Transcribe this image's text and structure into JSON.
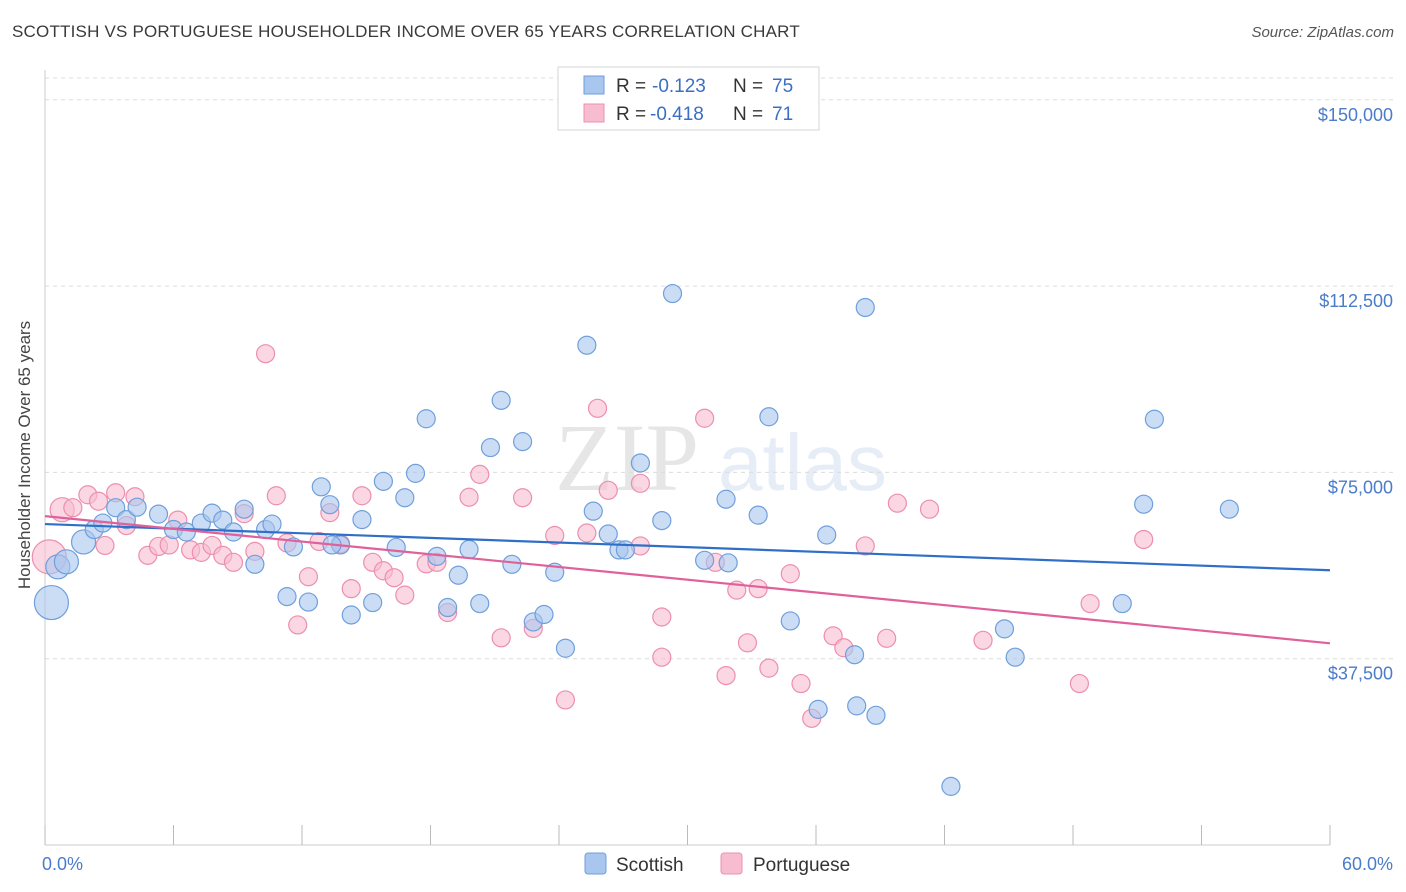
{
  "title": "SCOTTISH VS PORTUGUESE HOUSEHOLDER INCOME OVER 65 YEARS CORRELATION CHART",
  "source": "Source: ZipAtlas.com",
  "watermark": {
    "zip": "ZIP",
    "atlas": "atlas"
  },
  "colors": {
    "scottish_fill": "#a9c6ee",
    "scottish_stroke": "#6f9fdc",
    "scottish_line": "#2f6fc8",
    "portuguese_fill": "#f7bcd0",
    "portuguese_stroke": "#ec8fae",
    "portuguese_line": "#e0609a"
  },
  "stats_legend": [
    {
      "r_label": "R = ",
      "r_value": "-0.123",
      "n_label": "N = ",
      "n_value": "75"
    },
    {
      "r_label": "R = ",
      "r_value": "-0.418",
      "n_label": "N = ",
      "n_value": "71"
    }
  ],
  "chart_data": {
    "type": "scatter",
    "title": "SCOTTISH VS PORTUGUESE HOUSEHOLDER INCOME OVER 65 YEARS CORRELATION CHART",
    "xlabel": "",
    "ylabel": "Householder Income Over 65 years",
    "xlim": [
      0,
      60
    ],
    "ylim": [
      0,
      156000
    ],
    "x_tick_labels": {
      "min": "0.0%",
      "max": "60.0%"
    },
    "y_ticks": [
      {
        "value": 37500,
        "label": "$37,500"
      },
      {
        "value": 75000,
        "label": "$75,000"
      },
      {
        "value": 112500,
        "label": "$112,500"
      },
      {
        "value": 150000,
        "label": "$150,000"
      }
    ],
    "grid": true,
    "legend_position": "bottom-center",
    "series": [
      {
        "name": "Scottish",
        "trend": {
          "x": [
            0,
            60
          ],
          "y": [
            64600,
            55300
          ]
        },
        "points": [
          [
            0.3,
            48800
          ],
          [
            0.6,
            56000
          ],
          [
            1.0,
            57000
          ],
          [
            1.8,
            61000
          ],
          [
            2.3,
            63500
          ],
          [
            2.7,
            64800
          ],
          [
            3.3,
            67900
          ],
          [
            3.8,
            65500
          ],
          [
            4.3,
            68000
          ],
          [
            5.3,
            66600
          ],
          [
            6.0,
            63500
          ],
          [
            6.6,
            63000
          ],
          [
            7.3,
            64800
          ],
          [
            7.8,
            66800
          ],
          [
            8.3,
            65400
          ],
          [
            8.8,
            63000
          ],
          [
            9.3,
            67600
          ],
          [
            9.8,
            56500
          ],
          [
            10.3,
            63500
          ],
          [
            10.6,
            64600
          ],
          [
            11.3,
            50000
          ],
          [
            11.6,
            60000
          ],
          [
            12.3,
            48900
          ],
          [
            12.9,
            72100
          ],
          [
            13.3,
            68500
          ],
          [
            13.8,
            60400
          ],
          [
            14.3,
            46300
          ],
          [
            14.8,
            65500
          ],
          [
            15.3,
            48800
          ],
          [
            15.8,
            73200
          ],
          [
            16.4,
            59900
          ],
          [
            16.8,
            69900
          ],
          [
            17.3,
            74800
          ],
          [
            17.8,
            85800
          ],
          [
            18.3,
            58100
          ],
          [
            18.8,
            47800
          ],
          [
            19.3,
            54300
          ],
          [
            19.8,
            59500
          ],
          [
            20.3,
            48600
          ],
          [
            20.8,
            80000
          ],
          [
            21.3,
            89500
          ],
          [
            21.8,
            56500
          ],
          [
            22.3,
            81200
          ],
          [
            22.8,
            44900
          ],
          [
            23.3,
            46400
          ],
          [
            23.8,
            54900
          ],
          [
            24.3,
            39600
          ],
          [
            25.3,
            100600
          ],
          [
            25.6,
            67200
          ],
          [
            26.3,
            62600
          ],
          [
            26.8,
            59400
          ],
          [
            27.8,
            76900
          ],
          [
            28.8,
            65300
          ],
          [
            29.3,
            111000
          ],
          [
            30.8,
            57300
          ],
          [
            31.8,
            69600
          ],
          [
            31.9,
            56800
          ],
          [
            33.3,
            66400
          ],
          [
            33.8,
            86200
          ],
          [
            34.8,
            45100
          ],
          [
            36.5,
            62400
          ],
          [
            37.8,
            38300
          ],
          [
            37.9,
            28000
          ],
          [
            38.3,
            108200
          ],
          [
            38.8,
            26100
          ],
          [
            42.3,
            11800
          ],
          [
            44.8,
            43500
          ],
          [
            45.3,
            37800
          ],
          [
            50.3,
            48600
          ],
          [
            51.3,
            68600
          ],
          [
            51.8,
            85700
          ],
          [
            55.3,
            67600
          ],
          [
            36.1,
            27300
          ],
          [
            13.4,
            60400
          ],
          [
            27.1,
            59400
          ]
        ]
      },
      {
        "name": "Portuguese",
        "trend": {
          "x": [
            0,
            60
          ],
          "y": [
            66200,
            40600
          ]
        },
        "points": [
          [
            0.2,
            58000
          ],
          [
            0.8,
            67500
          ],
          [
            1.3,
            67900
          ],
          [
            2.0,
            70500
          ],
          [
            2.5,
            69200
          ],
          [
            2.8,
            60300
          ],
          [
            3.3,
            70900
          ],
          [
            3.8,
            64300
          ],
          [
            4.2,
            70100
          ],
          [
            4.8,
            58300
          ],
          [
            5.3,
            60100
          ],
          [
            5.8,
            60400
          ],
          [
            6.2,
            65400
          ],
          [
            6.8,
            59400
          ],
          [
            7.3,
            58900
          ],
          [
            7.8,
            60300
          ],
          [
            8.3,
            58300
          ],
          [
            8.8,
            56900
          ],
          [
            9.3,
            66700
          ],
          [
            9.8,
            59100
          ],
          [
            10.3,
            98900
          ],
          [
            10.8,
            70300
          ],
          [
            11.3,
            60800
          ],
          [
            11.8,
            44300
          ],
          [
            12.3,
            54000
          ],
          [
            12.8,
            61100
          ],
          [
            13.3,
            66900
          ],
          [
            13.8,
            60600
          ],
          [
            14.3,
            51600
          ],
          [
            14.8,
            70300
          ],
          [
            15.3,
            56900
          ],
          [
            15.8,
            55200
          ],
          [
            16.3,
            53800
          ],
          [
            16.8,
            50300
          ],
          [
            17.8,
            56600
          ],
          [
            18.3,
            56900
          ],
          [
            18.8,
            46800
          ],
          [
            19.8,
            70000
          ],
          [
            20.3,
            74600
          ],
          [
            21.3,
            41700
          ],
          [
            22.3,
            69900
          ],
          [
            22.8,
            43600
          ],
          [
            23.8,
            62300
          ],
          [
            24.3,
            29200
          ],
          [
            25.3,
            62800
          ],
          [
            25.8,
            87900
          ],
          [
            26.3,
            71400
          ],
          [
            27.8,
            72800
          ],
          [
            27.8,
            60200
          ],
          [
            28.8,
            45900
          ],
          [
            28.8,
            37800
          ],
          [
            30.8,
            85900
          ],
          [
            31.8,
            34100
          ],
          [
            31.3,
            56900
          ],
          [
            32.3,
            51300
          ],
          [
            32.8,
            40700
          ],
          [
            33.3,
            51600
          ],
          [
            33.8,
            35600
          ],
          [
            34.8,
            54600
          ],
          [
            35.3,
            32500
          ],
          [
            35.8,
            25500
          ],
          [
            36.8,
            42100
          ],
          [
            37.3,
            39700
          ],
          [
            38.3,
            60200
          ],
          [
            39.3,
            41600
          ],
          [
            39.8,
            68800
          ],
          [
            41.3,
            67600
          ],
          [
            43.8,
            41200
          ],
          [
            48.3,
            32500
          ],
          [
            48.8,
            48600
          ],
          [
            51.3,
            61500
          ]
        ]
      }
    ]
  }
}
